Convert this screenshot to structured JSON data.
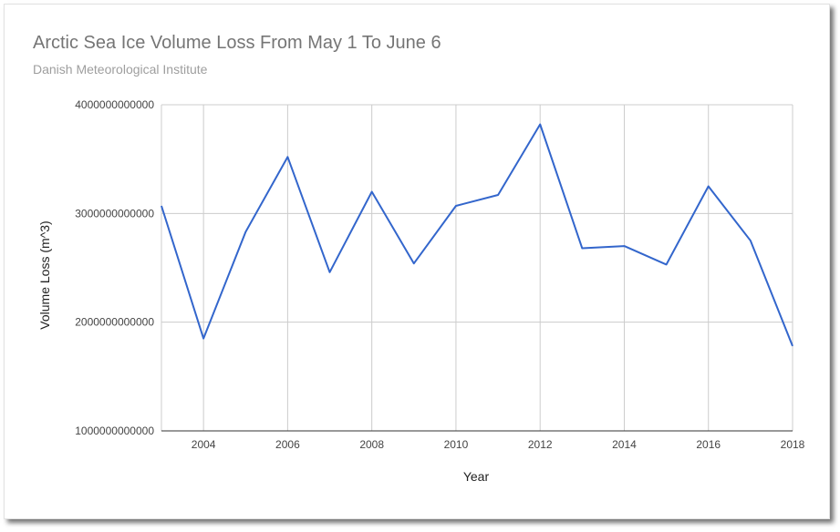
{
  "chart_data": {
    "type": "line",
    "title": "Arctic Sea Ice Volume Loss From May 1 To June 6",
    "subtitle": "Danish Meteorological Institute",
    "xlabel": "Year",
    "ylabel": "Volume Loss (m^3)",
    "x_ticks": [
      "2004",
      "2006",
      "2008",
      "2010",
      "2012",
      "2014",
      "2016",
      "2018"
    ],
    "y_ticks": [
      "1000000000000",
      "2000000000000",
      "3000000000000",
      "4000000000000"
    ],
    "xlim": [
      2003,
      2018
    ],
    "ylim": [
      1000000000000,
      4000000000000
    ],
    "grid": true,
    "colors": {
      "line": "#3366cc",
      "grid": "#cccccc"
    },
    "x": [
      2003,
      2004,
      2005,
      2006,
      2007,
      2008,
      2009,
      2010,
      2011,
      2012,
      2013,
      2014,
      2015,
      2016,
      2017,
      2018
    ],
    "series": [
      {
        "values": [
          3070000000000,
          1850000000000,
          2830000000000,
          3520000000000,
          2460000000000,
          3200000000000,
          2540000000000,
          3070000000000,
          3170000000000,
          3820000000000,
          2680000000000,
          2700000000000,
          2530000000000,
          3250000000000,
          2750000000000,
          1780000000000
        ]
      }
    ]
  }
}
